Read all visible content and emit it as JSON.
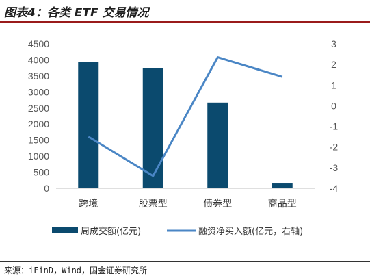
{
  "figure_title": "图表4：各类 ETF 交易情况",
  "source": "来源：iFinD，Wind，国金证券研究所",
  "colors": {
    "bar": "#0b4a6e",
    "line": "#4a86c5",
    "title_rule": "#9a1b1b"
  },
  "chart_data": {
    "type": "bar",
    "categories": [
      "跨境",
      "股票型",
      "债券型",
      "商品型"
    ],
    "series": [
      {
        "name": "周成交额(亿元)",
        "type": "bar",
        "axis": "left",
        "values": [
          3940,
          3750,
          2670,
          170
        ]
      },
      {
        "name": "融资净买入额(亿元，右轴)",
        "type": "line",
        "axis": "right",
        "values": [
          -1.5,
          -3.4,
          2.35,
          1.4
        ]
      }
    ],
    "ylim_left": [
      0,
      4500
    ],
    "yticks_left": [
      "0",
      "500",
      "1000",
      "1500",
      "2000",
      "2500",
      "3000",
      "3500",
      "4000",
      "4500"
    ],
    "ylim_right": [
      -4,
      3
    ],
    "yticks_right": [
      "-4",
      "-3",
      "-2",
      "-1",
      "0",
      "1",
      "2",
      "3"
    ],
    "legend_position": "bottom",
    "grid": false
  }
}
